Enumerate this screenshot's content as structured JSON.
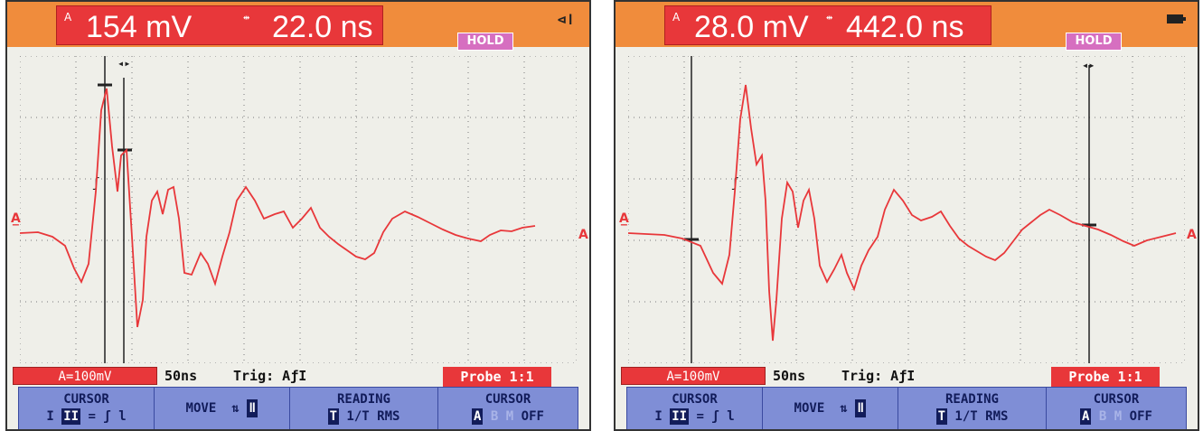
{
  "screens": [
    {
      "id": "left",
      "readout": {
        "channel": "A",
        "dv": "154 mV",
        "dt": "22.0 ns"
      },
      "hold_label": "HOLD",
      "status": "power-plug-icon",
      "volts_div": "A=100mV",
      "time_div": "50ns",
      "trigger": "Trig: AƒI",
      "probe": "Probe 1:1",
      "softkeys": [
        {
          "title": "CURSOR",
          "sub": "I II = ʃ l"
        },
        {
          "title": "MOVE",
          "sub": ""
        },
        {
          "title": "READING",
          "sub": "T 1/T RMS"
        },
        {
          "title": "CURSOR",
          "sub": "A B M OFF"
        }
      ]
    },
    {
      "id": "right",
      "readout": {
        "channel": "A",
        "dv": "28.0 mV",
        "dt": "442.0 ns"
      },
      "hold_label": "HOLD",
      "status": "battery-icon",
      "volts_div": "A=100mV",
      "time_div": "50ns",
      "trigger": "Trig: AƒI",
      "probe": "Probe 1:1",
      "softkeys": [
        {
          "title": "CURSOR",
          "sub": "I II = ʃ l"
        },
        {
          "title": "MOVE",
          "sub": ""
        },
        {
          "title": "READING",
          "sub": "T 1/T RMS"
        },
        {
          "title": "CURSOR",
          "sub": "A B M OFF"
        }
      ]
    }
  ],
  "colors": {
    "trace": "#e8373a",
    "accent_orange": "#f08c3c",
    "softkey_blue": "#7f8ed6"
  }
}
